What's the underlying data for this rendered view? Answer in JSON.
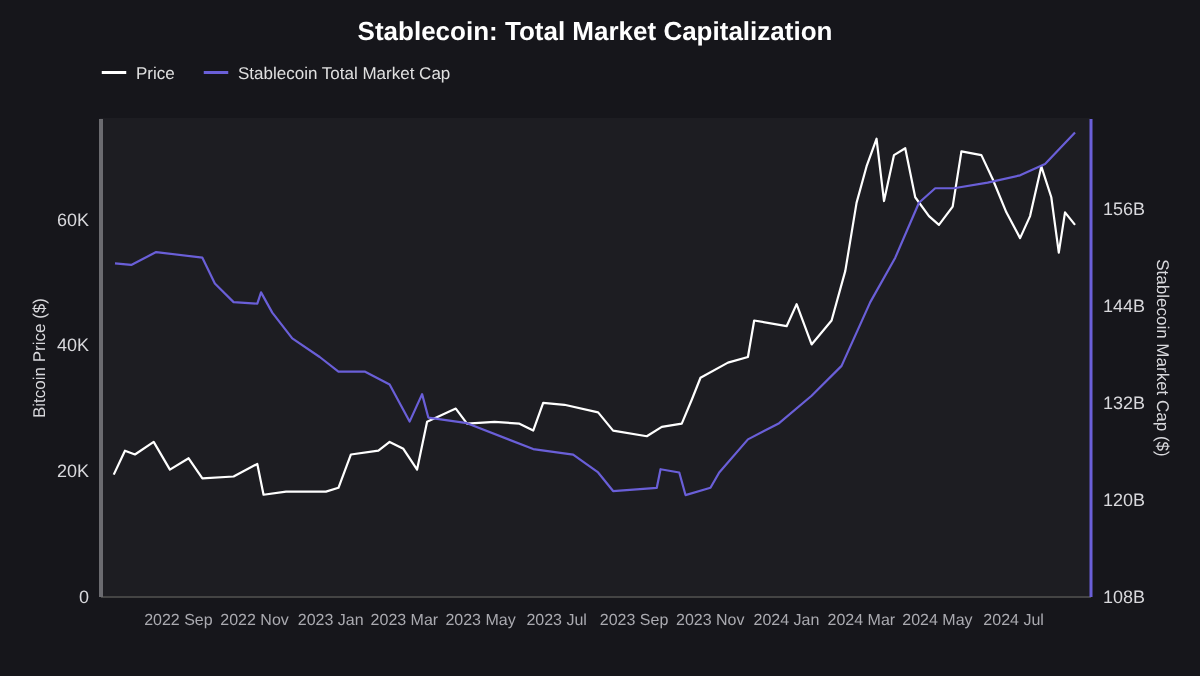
{
  "chart_data": {
    "type": "line",
    "title": "Stablecoin: Total Market Capitalization",
    "ylabel": "Bitcoin Price ($)",
    "y2label": "Stablecoin Market Cap ($)",
    "legend": "top",
    "grid": false,
    "xlim": [
      "2022-07-01",
      "2024-09-01"
    ],
    "xticks": [
      {
        "value": "2022-09-01",
        "label": "2022 Sep"
      },
      {
        "value": "2022-11-01",
        "label": "2022 Nov"
      },
      {
        "value": "2023-01-01",
        "label": "2023 Jan"
      },
      {
        "value": "2023-03-01",
        "label": "2023 Mar"
      },
      {
        "value": "2023-05-01",
        "label": "2023 May"
      },
      {
        "value": "2023-07-01",
        "label": "2023 Jul"
      },
      {
        "value": "2023-09-01",
        "label": "2023 Sep"
      },
      {
        "value": "2023-11-01",
        "label": "2023 Nov"
      },
      {
        "value": "2024-01-01",
        "label": "2024 Jan"
      },
      {
        "value": "2024-03-01",
        "label": "2024 Mar"
      },
      {
        "value": "2024-05-01",
        "label": "2024 May"
      },
      {
        "value": "2024-07-01",
        "label": "2024 Jul"
      }
    ],
    "ylim": [
      0,
      76000
    ],
    "yticks": [
      0,
      {
        "value": 20000,
        "label": "20K"
      },
      {
        "value": 40000,
        "label": "40K"
      },
      {
        "value": 60000,
        "label": "60K"
      }
    ],
    "y2lim": [
      108,
      167.2
    ],
    "y2ticks": [
      {
        "value": 108,
        "label": "108B"
      },
      {
        "value": 120,
        "label": "120B"
      },
      {
        "value": 132,
        "label": "132B"
      },
      {
        "value": 144,
        "label": "144B"
      },
      {
        "value": 156,
        "label": "156B"
      }
    ],
    "series": [
      {
        "name": "Price",
        "color": "#ffffff",
        "x": [
          "2022-07-12",
          "2022-07-21",
          "2022-07-29",
          "2022-08-13",
          "2022-08-26",
          "2022-09-10",
          "2022-09-21",
          "2022-10-16",
          "2022-11-04",
          "2022-11-09",
          "2022-11-27",
          "2022-12-29",
          "2023-01-08",
          "2023-01-18",
          "2023-02-09",
          "2023-02-18",
          "2023-03-01",
          "2023-03-12",
          "2023-03-20",
          "2023-04-12",
          "2023-04-21",
          "2023-05-13",
          "2023-06-02",
          "2023-06-13",
          "2023-06-21",
          "2023-07-08",
          "2023-08-04",
          "2023-08-16",
          "2023-09-12",
          "2023-09-24",
          "2023-10-10",
          "2023-10-18",
          "2023-10-25",
          "2023-11-16",
          "2023-12-02",
          "2023-12-07",
          "2024-01-02",
          "2024-01-10",
          "2024-01-22",
          "2024-02-07",
          "2024-02-18",
          "2024-02-27",
          "2024-03-06",
          "2024-03-14",
          "2024-03-20",
          "2024-03-28",
          "2024-04-06",
          "2024-04-14",
          "2024-04-25",
          "2024-05-03",
          "2024-05-14",
          "2024-05-21",
          "2024-06-06",
          "2024-06-15",
          "2024-06-26",
          "2024-07-07",
          "2024-07-15",
          "2024-07-24",
          "2024-08-01",
          "2024-08-07",
          "2024-08-12",
          "2024-08-20"
        ],
        "values": [
          19300,
          23100,
          22500,
          24500,
          20100,
          21900,
          18700,
          19000,
          21000,
          16100,
          16600,
          16600,
          17200,
          22500,
          23100,
          24500,
          23400,
          20100,
          27700,
          29800,
          27400,
          27700,
          27400,
          26300,
          30700,
          30400,
          29200,
          26300,
          25400,
          26900,
          27400,
          31200,
          34700,
          37100,
          38000,
          43800,
          42900,
          46400,
          40000,
          43800,
          51700,
          62500,
          68300,
          72700,
          62800,
          70100,
          71200,
          63400,
          60400,
          59000,
          61900,
          70700,
          70100,
          66300,
          61000,
          56900,
          60400,
          68300,
          63400,
          54600,
          61000,
          59000
        ]
      },
      {
        "name": "Stablecoin Total Market Cap",
        "color": "#6a5fd8",
        "axis": "y2",
        "x": [
          "2022-07-13",
          "2022-07-26",
          "2022-08-15",
          "2022-09-21",
          "2022-10-01",
          "2022-10-16",
          "2022-11-04",
          "2022-11-07",
          "2022-11-16",
          "2022-12-02",
          "2022-12-24",
          "2023-01-08",
          "2023-01-29",
          "2023-02-18",
          "2023-03-06",
          "2023-03-16",
          "2023-03-21",
          "2023-04-21",
          "2023-06-13",
          "2023-07-15",
          "2023-08-04",
          "2023-08-16",
          "2023-09-20",
          "2023-09-23",
          "2023-10-08",
          "2023-10-13",
          "2023-11-02",
          "2023-11-09",
          "2023-12-02",
          "2023-12-27",
          "2024-01-22",
          "2024-02-15",
          "2024-03-09",
          "2024-03-29",
          "2024-04-17",
          "2024-04-30",
          "2024-05-15",
          "2024-06-11",
          "2024-07-07",
          "2024-07-27",
          "2024-08-20"
        ],
        "values": [
          149.2,
          149.0,
          150.6,
          149.9,
          146.7,
          144.4,
          144.2,
          145.6,
          143.1,
          139.9,
          137.6,
          135.8,
          135.8,
          134.2,
          129.6,
          133.0,
          130.1,
          129.4,
          126.2,
          125.5,
          123.3,
          121.0,
          121.4,
          123.7,
          123.3,
          120.5,
          121.4,
          123.3,
          127.4,
          129.4,
          132.8,
          136.5,
          144.4,
          149.9,
          156.7,
          158.5,
          158.5,
          159.2,
          160.1,
          161.5,
          165.4
        ]
      }
    ]
  }
}
